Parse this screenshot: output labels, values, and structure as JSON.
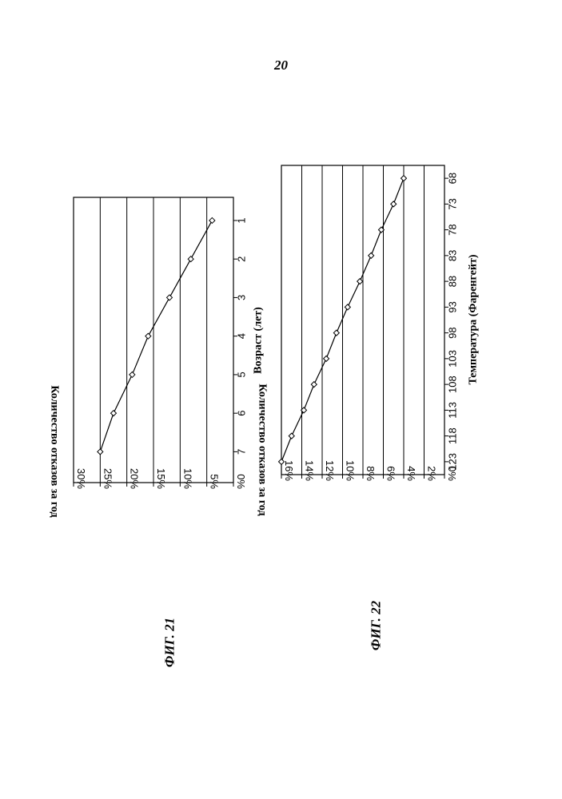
{
  "page": {
    "number": "20"
  },
  "chart_data": [
    {
      "type": "line",
      "figure": "ФИГ. 21",
      "xlabel": "Возраст (лет)",
      "ylabel": "Количество отказов за год",
      "x": [
        1,
        2,
        3,
        4,
        5,
        6,
        7
      ],
      "series": [
        {
          "values": [
            4,
            8,
            12,
            16,
            19,
            22.5,
            25
          ]
        }
      ],
      "xticks": [
        "1",
        "2",
        "3",
        "4",
        "5",
        "6",
        "7"
      ],
      "yticks": [
        "0%",
        "5%",
        "10%",
        "15%",
        "20%",
        "25%",
        "30%"
      ],
      "xlim": [
        0.4,
        7.8
      ],
      "ylim": [
        0,
        30
      ],
      "grid": true,
      "marker": "diamond",
      "orientation": "rotated-90"
    },
    {
      "type": "line",
      "figure": "ФИГ. 22",
      "xlabel": "Температура (Фаренгейт)",
      "ylabel": "Количество отказов за год",
      "x": [
        68,
        73,
        78,
        83,
        88,
        93,
        98,
        103,
        108,
        113,
        118,
        123
      ],
      "series": [
        {
          "values": [
            4,
            5,
            6.2,
            7.2,
            8.3,
            9.5,
            10.6,
            11.6,
            12.8,
            13.8,
            15,
            16
          ]
        }
      ],
      "xticks": [
        "68",
        "73",
        "78",
        "83",
        "88",
        "93",
        "98",
        "103",
        "108",
        "113",
        "118",
        "123"
      ],
      "yticks": [
        "0%",
        "2%",
        "4%",
        "6%",
        "8%",
        "10%",
        "12%",
        "14%",
        "16%"
      ],
      "xlim": [
        65.5,
        125.5
      ],
      "ylim": [
        0,
        16
      ],
      "grid": true,
      "marker": "diamond",
      "orientation": "rotated-90"
    }
  ]
}
